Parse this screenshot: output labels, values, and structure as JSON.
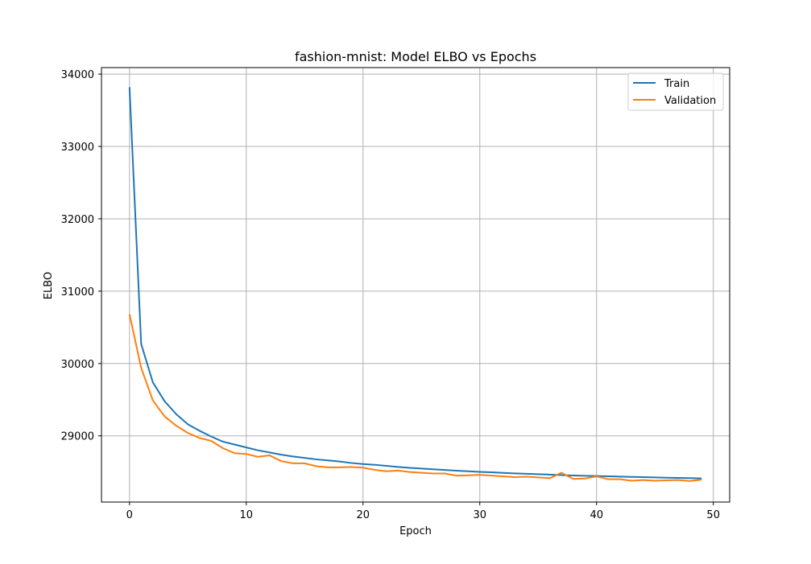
{
  "chart_data": {
    "type": "line",
    "title": "fashion-mnist: Model ELBO vs Epochs",
    "xlabel": "Epoch",
    "ylabel": "ELBO",
    "xlim": [
      -2.4,
      51.4
    ],
    "ylim": [
      28085,
      34090
    ],
    "xticks": [
      0,
      10,
      20,
      30,
      40,
      50
    ],
    "yticks": [
      29000,
      30000,
      31000,
      32000,
      33000,
      34000
    ],
    "grid": true,
    "legend_position": "top-right",
    "x": [
      0,
      1,
      2,
      3,
      4,
      5,
      6,
      7,
      8,
      9,
      10,
      11,
      12,
      13,
      14,
      15,
      16,
      17,
      18,
      19,
      20,
      21,
      22,
      23,
      24,
      25,
      26,
      27,
      28,
      29,
      30,
      31,
      32,
      33,
      34,
      35,
      36,
      37,
      38,
      39,
      40,
      41,
      42,
      43,
      44,
      45,
      46,
      47,
      48,
      49
    ],
    "series": [
      {
        "name": "Train",
        "color": "#1f77b4",
        "values": [
          33820,
          30270,
          29740,
          29480,
          29300,
          29160,
          29070,
          28990,
          28920,
          28880,
          28840,
          28800,
          28770,
          28740,
          28715,
          28695,
          28675,
          28660,
          28645,
          28625,
          28610,
          28600,
          28585,
          28570,
          28558,
          28548,
          28538,
          28528,
          28518,
          28510,
          28502,
          28496,
          28488,
          28481,
          28475,
          28470,
          28464,
          28458,
          28452,
          28448,
          28445,
          28441,
          28437,
          28433,
          28430,
          28426,
          28422,
          28419,
          28416,
          28412
        ]
      },
      {
        "name": "Validation",
        "color": "#ff7f0e",
        "values": [
          30680,
          29940,
          29490,
          29270,
          29140,
          29040,
          28970,
          28930,
          28830,
          28760,
          28750,
          28710,
          28730,
          28650,
          28620,
          28620,
          28580,
          28565,
          28565,
          28570,
          28560,
          28530,
          28510,
          28520,
          28500,
          28490,
          28480,
          28480,
          28450,
          28455,
          28460,
          28450,
          28440,
          28430,
          28435,
          28425,
          28415,
          28490,
          28405,
          28410,
          28440,
          28400,
          28400,
          28380,
          28390,
          28380,
          28385,
          28390,
          28375,
          28395
        ]
      }
    ]
  }
}
